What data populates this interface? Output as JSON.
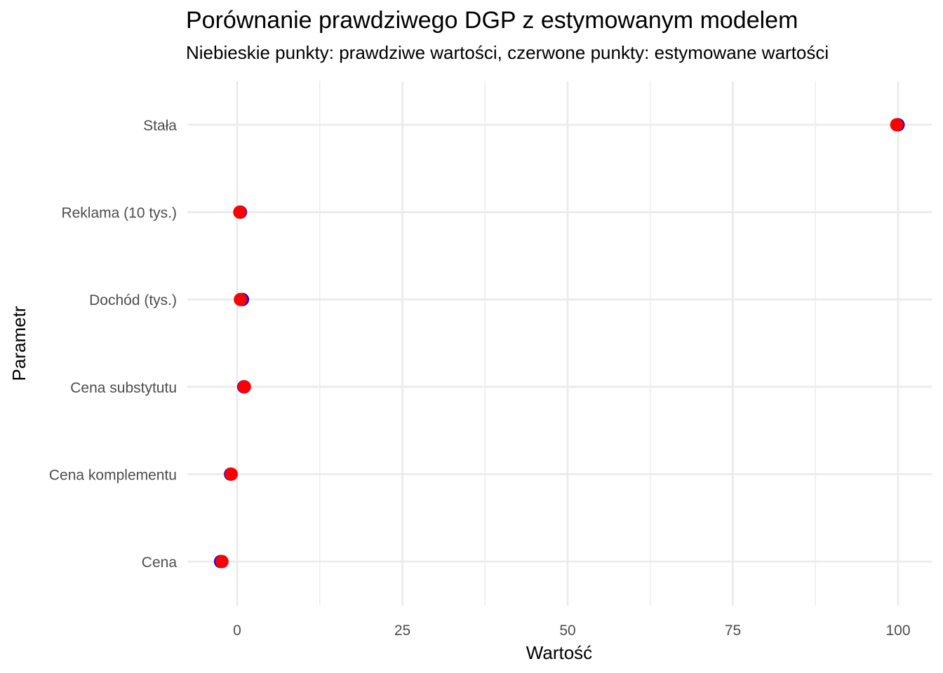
{
  "chart_data": {
    "type": "scatter",
    "title": "Porównanie prawdziwego DGP z estymowanym modelem",
    "subtitle": "Niebieskie punkty: prawdziwe wartości, czerwone punkty: estymowane wartości",
    "xlabel": "Wartość",
    "ylabel": "Parametr",
    "xlim": [
      -8,
      105
    ],
    "x_ticks": [
      0,
      25,
      50,
      75,
      100
    ],
    "x_tick_labels": [
      "0",
      "25",
      "50",
      "75",
      "100"
    ],
    "categories": [
      "Stała",
      "Reklama (10 tys.)",
      "Dochód (tys.)",
      "Cena substytutu",
      "Cena komplementu",
      "Cena"
    ],
    "grid": true,
    "series": [
      {
        "color": "#0000ff",
        "values": [
          100,
          0.5,
          0.8,
          1.0,
          -1.0,
          -2.5
        ]
      },
      {
        "color": "#ff0000",
        "values": [
          99.8,
          0.4,
          0.5,
          1.1,
          -0.9,
          -2.3
        ]
      }
    ]
  }
}
